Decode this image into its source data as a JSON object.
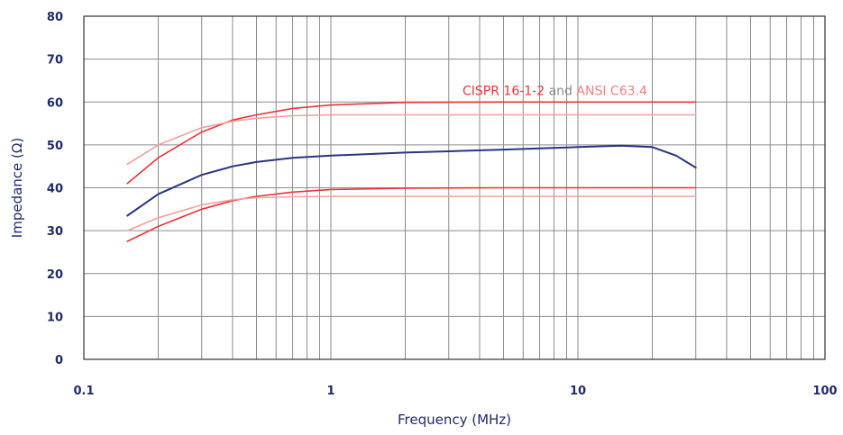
{
  "chart_data": {
    "type": "line",
    "title": "",
    "xlabel": "Frequency (MHz)",
    "ylabel": "Impedance (Ω)",
    "x_scale": "log",
    "xlim": [
      0.1,
      100
    ],
    "ylim": [
      0,
      80
    ],
    "grid": true,
    "x_ticks": [
      {
        "value": 0.1,
        "label": "0.1"
      },
      {
        "value": 1,
        "label": "1"
      },
      {
        "value": 10,
        "label": "10"
      },
      {
        "value": 100,
        "label": "100"
      }
    ],
    "y_ticks": [
      {
        "value": 0,
        "label": "0"
      },
      {
        "value": 10,
        "label": "10"
      },
      {
        "value": 20,
        "label": "20"
      },
      {
        "value": 30,
        "label": "30"
      },
      {
        "value": 40,
        "label": "40"
      },
      {
        "value": 50,
        "label": "50"
      },
      {
        "value": 60,
        "label": "60"
      },
      {
        "value": 70,
        "label": "70"
      },
      {
        "value": 80,
        "label": "80"
      }
    ],
    "legend": {
      "parts": [
        {
          "text": "CISPR 16-1-2",
          "color": "#e8343a"
        },
        {
          "text": " and ",
          "color": "#8a8a8a"
        },
        {
          "text": "ANSI C63.4",
          "color": "#f08080"
        }
      ]
    },
    "colors": {
      "measured": "#2b3580",
      "cispr": "#e8343a",
      "ansi": "#f4a0a0",
      "axis_text": "#1f2a6b",
      "grid": "#8c8c8c"
    },
    "series": [
      {
        "color": "#2b3580",
        "x": [
          0.15,
          0.2,
          0.3,
          0.4,
          0.5,
          0.7,
          1,
          2,
          3,
          5,
          7,
          10,
          15,
          20,
          25,
          30
        ],
        "y": [
          33.5,
          38.5,
          43,
          45,
          46,
          47,
          47.5,
          48.2,
          48.5,
          48.9,
          49.2,
          49.5,
          49.8,
          49.5,
          47.5,
          44.7
        ]
      },
      {
        "color": "#e8343a",
        "x": [
          0.15,
          0.2,
          0.3,
          0.4,
          0.5,
          0.7,
          1,
          2,
          5,
          10,
          30
        ],
        "y": [
          41,
          47,
          53,
          55.8,
          57,
          58.5,
          59.3,
          59.9,
          60,
          60,
          60
        ]
      },
      {
        "color": "#e8343a",
        "x": [
          0.15,
          0.2,
          0.3,
          0.4,
          0.5,
          0.7,
          1,
          2,
          5,
          10,
          30
        ],
        "y": [
          27.5,
          31,
          35,
          37,
          38,
          39,
          39.6,
          39.9,
          40,
          40,
          40
        ]
      },
      {
        "color": "#f4a0a0",
        "x": [
          0.15,
          0.2,
          0.3,
          0.4,
          0.5,
          0.7,
          1,
          2,
          5,
          10,
          30
        ],
        "y": [
          45.5,
          50,
          54,
          55.5,
          56.2,
          56.8,
          57,
          57,
          57,
          57,
          57
        ]
      },
      {
        "color": "#f4a0a0",
        "x": [
          0.15,
          0.2,
          0.3,
          0.4,
          0.5,
          0.7,
          1,
          2,
          5,
          10,
          30
        ],
        "y": [
          30,
          33,
          36,
          37.2,
          37.7,
          37.9,
          38,
          38,
          38,
          38,
          38
        ]
      }
    ]
  }
}
